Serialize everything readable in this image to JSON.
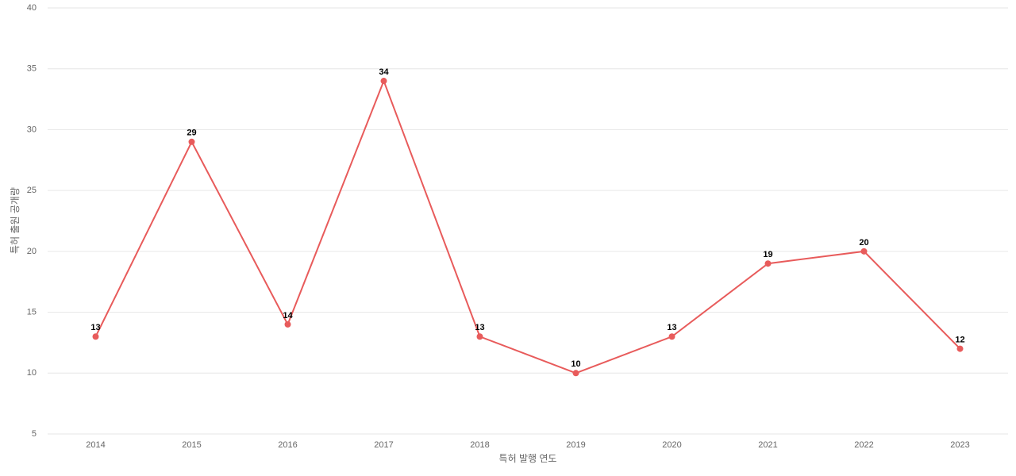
{
  "chart_data": {
    "type": "line",
    "x_label": "특허 발행 연도",
    "y_label": "특허 출원 공개량",
    "categories": [
      "2014",
      "2015",
      "2016",
      "2017",
      "2018",
      "2019",
      "2020",
      "2021",
      "2022",
      "2023"
    ],
    "values": [
      13,
      29,
      14,
      34,
      13,
      10,
      13,
      19,
      20,
      12
    ],
    "color": "#e85b5b",
    "ylim": [
      5,
      40
    ],
    "yticks": [
      5,
      10,
      15,
      20,
      25,
      30,
      35,
      40
    ],
    "grid": true
  }
}
